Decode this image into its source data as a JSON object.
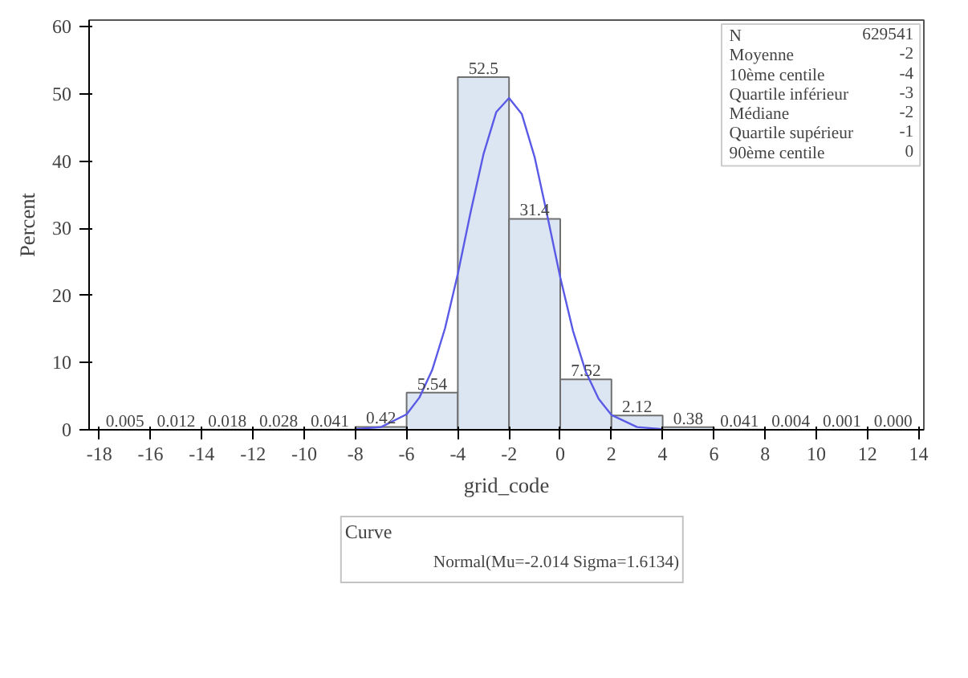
{
  "chart_data": {
    "type": "histogram",
    "xlabel": "grid_code",
    "ylabel": "Percent",
    "legend_title": "Curve",
    "bins": [
      -18,
      -16,
      -14,
      -12,
      -10,
      -8,
      -6,
      -4,
      -2,
      0,
      2,
      4,
      6,
      8,
      10,
      12,
      14
    ],
    "values": [
      0.005,
      0.012,
      0.018,
      0.028,
      0.041,
      0.42,
      5.54,
      52.5,
      31.4,
      7.52,
      2.12,
      0.38,
      0.041,
      0.004,
      0.001,
      0.0
    ],
    "value_labels": [
      "0.005",
      "0.012",
      "0.018",
      "0.028",
      "0.041",
      "0.42",
      "5.54",
      "52.5",
      "31.4",
      "7.52",
      "2.12",
      "0.38",
      "0.041",
      "0.004",
      "0.001",
      "0.000"
    ],
    "color": "#dce6f2",
    "series": [
      {
        "type": "line",
        "name": "Normal(Mu=-2.014 Sigma=1.6134)",
        "color": "#5a5ae6",
        "x": [
          -8,
          -7,
          -6,
          -5.5,
          -5,
          -4.5,
          -4,
          -3.5,
          -3,
          -2.5,
          -2,
          -1.5,
          -1,
          -0.5,
          0,
          0.5,
          1,
          1.5,
          2,
          3,
          4
        ],
        "values": [
          0.1,
          0.4,
          2.3,
          4.8,
          8.9,
          15.1,
          23.2,
          32.4,
          41.0,
          47.3,
          49.4,
          47.0,
          40.6,
          31.8,
          22.7,
          14.7,
          8.6,
          4.6,
          2.2,
          0.4,
          0.1
        ]
      }
    ],
    "xlim": [
      -18.4,
      14.2
    ],
    "ylim": [
      0,
      61
    ],
    "xticks": [
      -18,
      -16,
      -14,
      -12,
      -10,
      -8,
      -6,
      -4,
      -2,
      0,
      2,
      4,
      6,
      8,
      10,
      12,
      14
    ],
    "yticks": [
      0,
      10,
      20,
      30,
      40,
      50,
      60
    ],
    "grid": false,
    "legend": "bottom",
    "annotations": [
      "N",
      "629541",
      "Moyenne",
      "-2",
      "10ème centile",
      "-4",
      "Quartile inférieur",
      "-3",
      "Médiane",
      "-2",
      "Quartile supérieur",
      "-1",
      "90ème centile",
      "0"
    ]
  }
}
